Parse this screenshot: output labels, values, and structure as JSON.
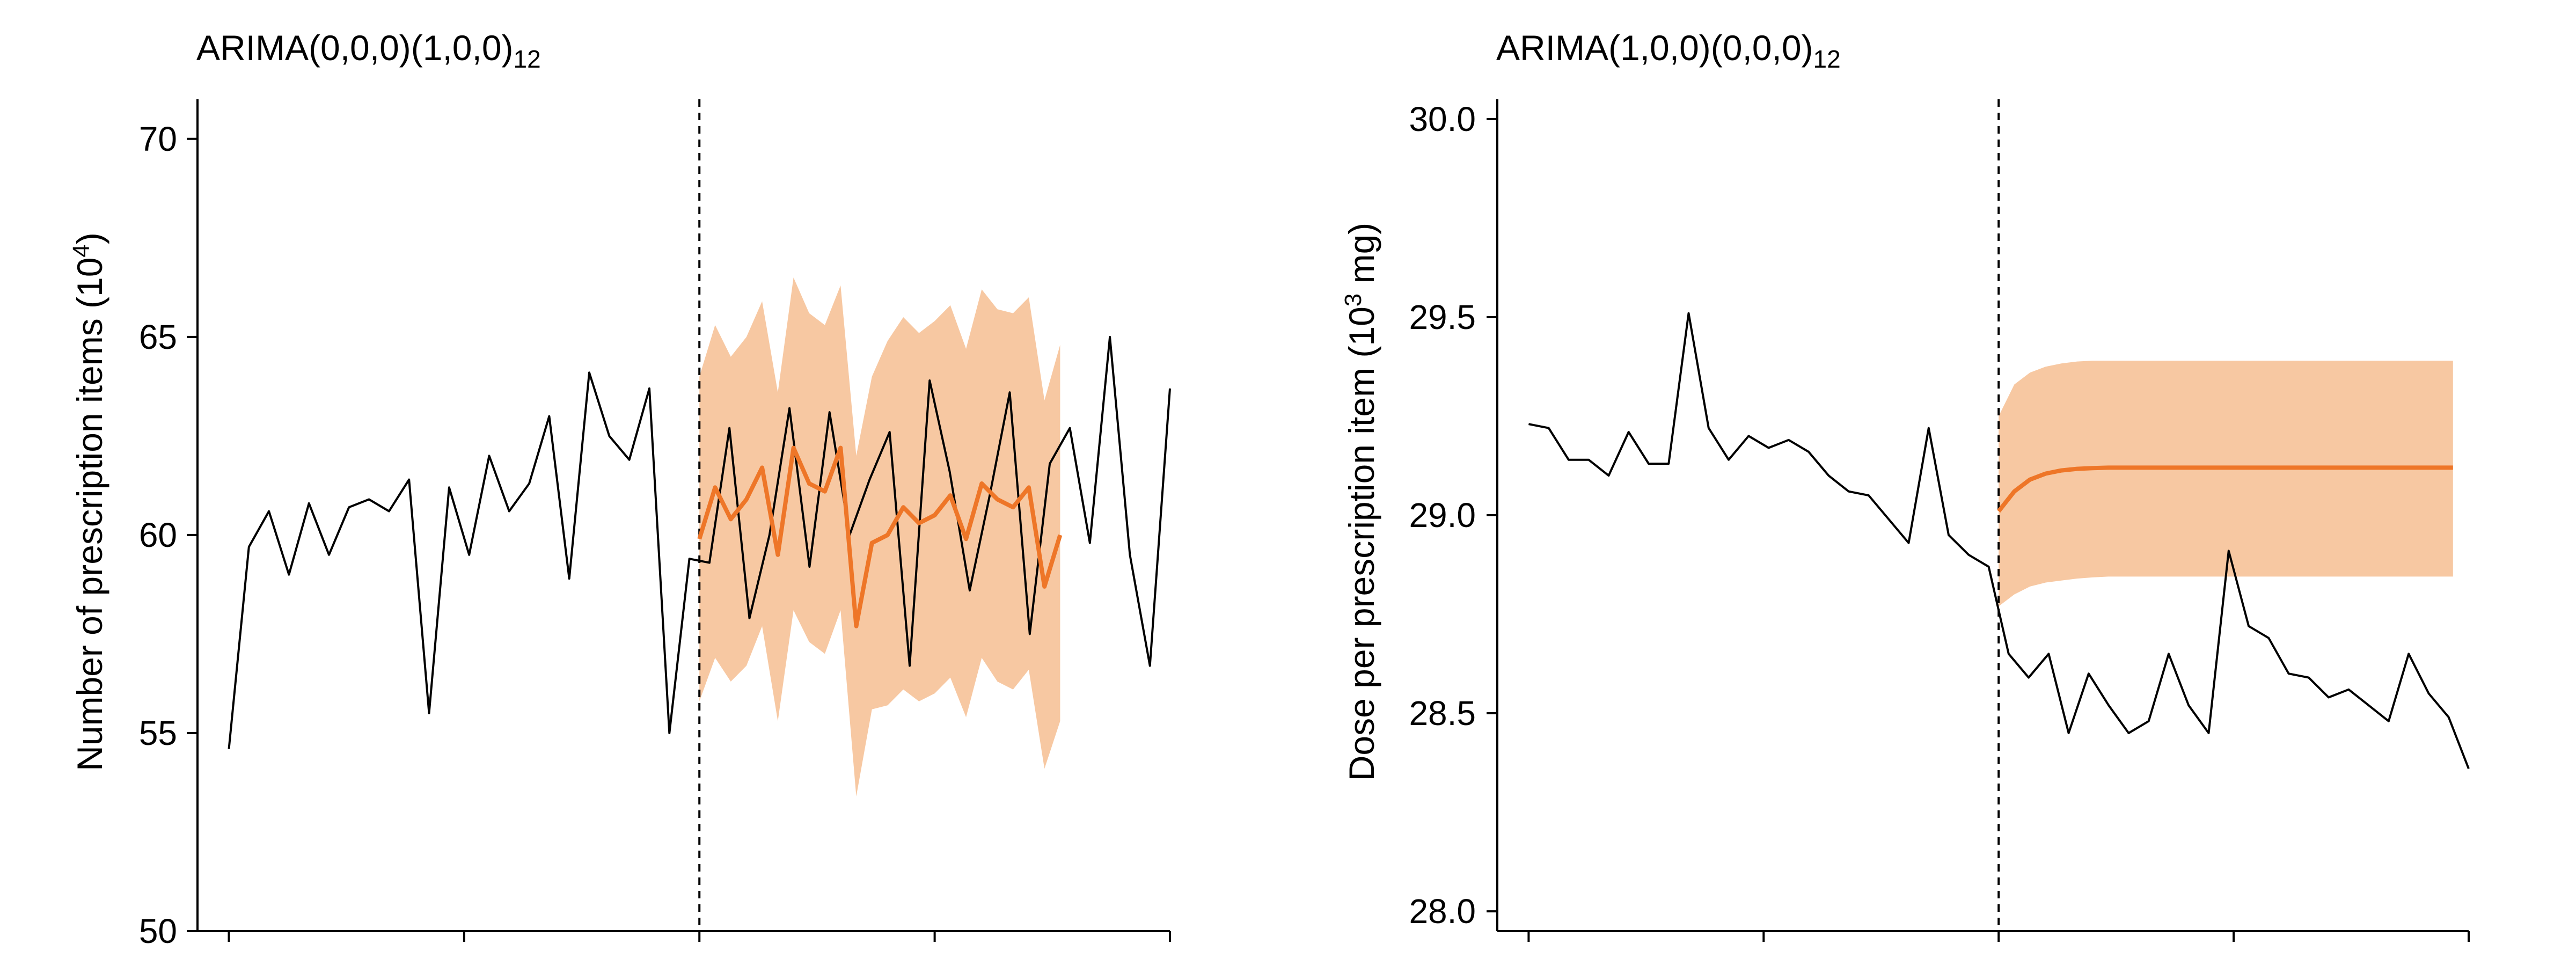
{
  "colors": {
    "observed": "#000000",
    "forecast": "#ee7628",
    "band": "#f7c8a2"
  },
  "chart_data": [
    {
      "type": "line",
      "title_main": "ARIMA(0,0,0)(1,0,0)",
      "title_sub": "12",
      "ylabel_main": "Number of prescription items (10",
      "ylabel_sup": "4",
      "ylabel_end": ")",
      "ylim": [
        50,
        71
      ],
      "yticks": [
        50,
        55,
        60,
        65,
        70
      ],
      "ytick_labels": [
        "50",
        "55",
        "60",
        "65",
        "70"
      ],
      "xlim": [
        -1,
        61
      ],
      "xticks": [
        1,
        16,
        31,
        46,
        61
      ],
      "xtick_labels": [
        "",
        "",
        "",
        "",
        ""
      ],
      "intervention_x": 31,
      "grid": false,
      "observed": [
        54.6,
        59.7,
        60.6,
        59.0,
        60.8,
        59.5,
        60.7,
        60.9,
        60.6,
        61.4,
        55.5,
        61.2,
        59.5,
        62.0,
        60.6,
        61.3,
        63.0,
        58.9,
        64.1,
        62.5,
        61.9,
        63.7,
        55.0,
        59.4,
        59.3,
        62.7,
        57.9,
        60.0,
        63.2,
        59.2,
        63.1,
        60.0,
        61.4,
        62.6,
        56.7,
        63.9,
        61.6,
        58.6,
        61.0,
        63.6,
        57.5,
        61.8,
        62.7,
        59.8,
        65.0,
        59.5,
        56.7,
        63.7
      ],
      "forecast": [
        59.9,
        61.2,
        60.4,
        60.9,
        61.7,
        59.5,
        62.2,
        61.3,
        61.1,
        62.2,
        57.7,
        59.8,
        60.0,
        60.7,
        60.3,
        60.5,
        61.0,
        59.9,
        61.3,
        60.9,
        60.7,
        61.2,
        58.7,
        60.0
      ],
      "lower": [
        55.8,
        56.9,
        56.3,
        56.7,
        57.7,
        55.3,
        58.1,
        57.3,
        57.0,
        58.1,
        53.4,
        55.6,
        55.7,
        56.1,
        55.8,
        56.0,
        56.4,
        55.4,
        56.9,
        56.3,
        56.1,
        56.6,
        54.1,
        55.3
      ],
      "upper": [
        64.0,
        65.3,
        64.5,
        65.0,
        65.9,
        63.6,
        66.5,
        65.6,
        65.3,
        66.3,
        62.0,
        64.0,
        64.9,
        65.5,
        65.1,
        65.4,
        65.8,
        64.7,
        66.2,
        65.7,
        65.6,
        66.0,
        63.4,
        64.8
      ]
    },
    {
      "type": "line",
      "title_main": "ARIMA(1,0,0)(0,0,0)",
      "title_sub": "12",
      "ylabel_main": "Dose per prescription item (10",
      "ylabel_sup": "3",
      "ylabel_end": " mg)",
      "ylim": [
        27.95,
        30.05
      ],
      "yticks": [
        28.0,
        28.5,
        29.0,
        29.5,
        30.0
      ],
      "ytick_labels": [
        "28.0",
        "28.5",
        "29.0",
        "29.5",
        "30.0"
      ],
      "xlim": [
        -1,
        61
      ],
      "xticks": [
        1,
        16,
        31,
        46,
        61
      ],
      "xtick_labels": [
        "",
        "",
        "",
        "",
        ""
      ],
      "intervention_x": 31,
      "grid": false,
      "observed": [
        29.23,
        29.22,
        29.14,
        29.14,
        29.1,
        29.21,
        29.13,
        29.13,
        29.51,
        29.22,
        29.14,
        29.2,
        29.17,
        29.19,
        29.16,
        29.1,
        29.06,
        29.05,
        28.99,
        28.93,
        29.22,
        28.95,
        28.9,
        28.87,
        28.65,
        28.59,
        28.65,
        28.45,
        28.6,
        28.52,
        28.45,
        28.48,
        28.65,
        28.52,
        28.45,
        28.91,
        28.72,
        28.69,
        28.6,
        28.59,
        28.54,
        28.56,
        28.52,
        28.48,
        28.65,
        28.55,
        28.49,
        28.36
      ],
      "forecast": [
        29.01,
        29.06,
        29.09,
        29.105,
        29.113,
        29.117,
        29.119,
        29.12,
        29.12,
        29.12,
        29.12,
        29.12,
        29.12,
        29.12,
        29.12,
        29.12,
        29.12,
        29.12,
        29.12,
        29.12,
        29.12,
        29.12,
        29.12,
        29.12,
        29.12,
        29.12,
        29.12,
        29.12,
        29.12,
        29.12
      ],
      "lower": [
        28.77,
        28.8,
        28.82,
        28.83,
        28.835,
        28.84,
        28.843,
        28.845,
        28.845,
        28.845,
        28.845,
        28.845,
        28.845,
        28.845,
        28.845,
        28.845,
        28.845,
        28.845,
        28.845,
        28.845,
        28.845,
        28.845,
        28.845,
        28.845,
        28.845,
        28.845,
        28.845,
        28.845,
        28.845,
        28.845
      ],
      "upper": [
        29.25,
        29.33,
        29.36,
        29.375,
        29.383,
        29.388,
        29.39,
        29.39,
        29.39,
        29.39,
        29.39,
        29.39,
        29.39,
        29.39,
        29.39,
        29.39,
        29.39,
        29.39,
        29.39,
        29.39,
        29.39,
        29.39,
        29.39,
        29.39,
        29.39,
        29.39,
        29.39,
        29.39,
        29.39,
        29.39
      ]
    }
  ]
}
